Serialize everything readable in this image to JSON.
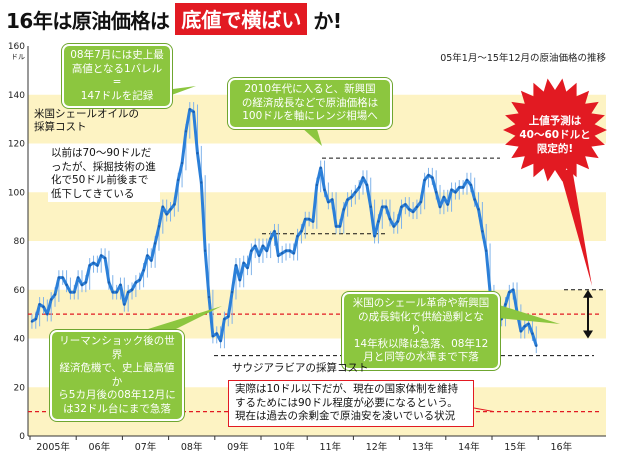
{
  "headline": {
    "part1": "16年は原油価格は",
    "highlight": "底値で横ばい",
    "part2": "か!"
  },
  "subtitle": "05年1月〜15年12月の原油価格の推移",
  "chart_data": {
    "type": "line",
    "y_unit": "ドル",
    "ylim": [
      0,
      160
    ],
    "yticks": [
      0,
      20,
      40,
      60,
      80,
      100,
      120,
      140,
      160
    ],
    "x_tick_labels": [
      "2005年",
      "06年",
      "07年",
      "08年",
      "09年",
      "10年",
      "11年",
      "12年",
      "13年",
      "14年",
      "15年",
      "16年"
    ],
    "grid": "horizontal bands",
    "series": [
      {
        "values": [
          47,
          48,
          54,
          53,
          50,
          56,
          58,
          65,
          65,
          62,
          59,
          59,
          65,
          62,
          63,
          70,
          71,
          70,
          74,
          73,
          63,
          59,
          59,
          62,
          54,
          59,
          60,
          63,
          64,
          68,
          74,
          72,
          79,
          86,
          94,
          91,
          93,
          95,
          105,
          112,
          125,
          134,
          133,
          116,
          104,
          76,
          57,
          41,
          42,
          39,
          48,
          49,
          59,
          70,
          64,
          71,
          69,
          76,
          78,
          74,
          78,
          76,
          81,
          84,
          74,
          75,
          76,
          76,
          75,
          82,
          84,
          89,
          89,
          88,
          103,
          110,
          101,
          96,
          97,
          86,
          86,
          93,
          97,
          98,
          100,
          102,
          106,
          103,
          94,
          82,
          88,
          94,
          94,
          89,
          86,
          88,
          94,
          95,
          93,
          92,
          94,
          96,
          105,
          107,
          106,
          100,
          94,
          98,
          95,
          101,
          100,
          102,
          102,
          105,
          103,
          97,
          93,
          84,
          76,
          59,
          47,
          50,
          48,
          54,
          59,
          60,
          51,
          43,
          45,
          46,
          42,
          37
        ]
      }
    ],
    "reference_lines": {
      "red": [
        50,
        10
      ],
      "black": [
        114,
        83,
        33
      ]
    },
    "range_marker": {
      "low": 40,
      "high": 60
    }
  },
  "callouts": {
    "peak": [
      "08年7月には史上最",
      "高値となる1バレル=",
      "147ドルを記録"
    ],
    "range2010": [
      "2010年代に入ると、新興国",
      "の経済成長などで原油価格は",
      "100ドルを軸にレンジ相場へ"
    ],
    "before": [
      "以前は70〜90ドルだ",
      "ったが、採掘技術の進",
      "化で50ドル前後まで",
      "低下してきている"
    ],
    "lehman": [
      "リーマンショック後の世界",
      "経済危機で、史上最高値か",
      "ら5カ月後の08年12月に",
      "は32ドル台にまで急落"
    ],
    "shale": [
      "米国のシェール革命や新興国",
      "の成長鈍化で供給過剰となり、",
      "14年秋以降は急落、08年12",
      "月と同等の水準まで下落"
    ]
  },
  "labels": {
    "shale_cost": [
      "米国シェールオイルの",
      "採算コスト"
    ],
    "saudi_cost": "サウジアラビアの採算コスト"
  },
  "actual_note": [
    "実際は10ドル以下だが、現在の国家体制を維持",
    "するためには90ドル程度が必要になるという。",
    "現在は過去の余剰金で原油安を凌いでいる状況"
  ],
  "burst": [
    "上値予測は",
    "40〜60ドルと",
    "限定的!"
  ],
  "colors": {
    "accent_red": "#e21a22",
    "callout_green": "#8cc63f",
    "line_blue": "#2b7fd8",
    "band_yellow": "#fdf3c3"
  }
}
